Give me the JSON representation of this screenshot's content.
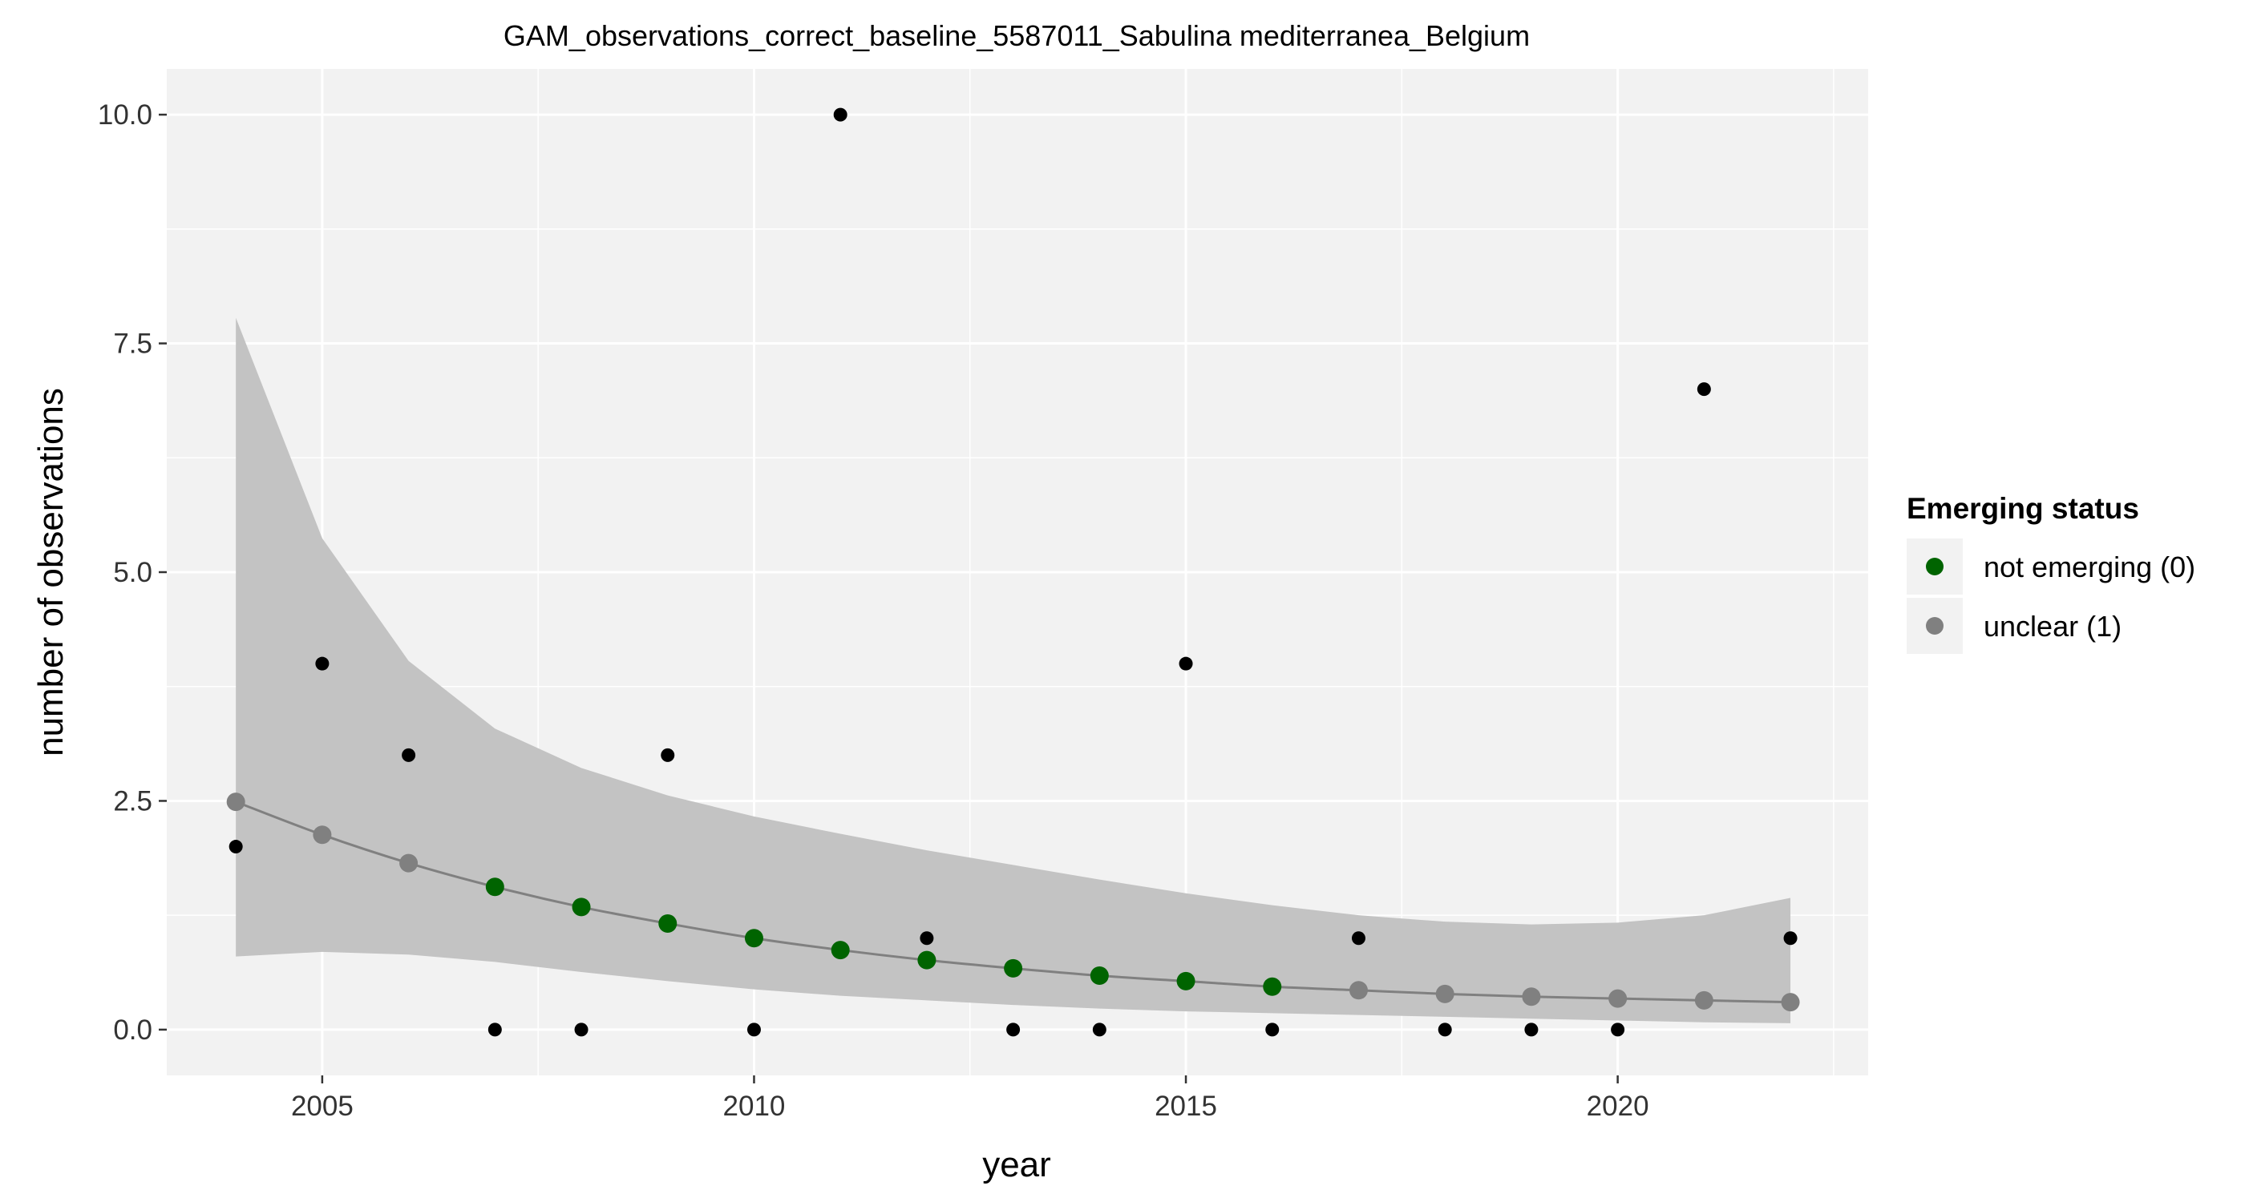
{
  "chart_data": {
    "type": "scatter",
    "title": "GAM_observations_correct_baseline_5587011_Sabulina mediterranea_Belgium",
    "xlabel": "year",
    "ylabel": "number of observations",
    "xlim": [
      2003.2,
      2022.9
    ],
    "ylim": [
      -0.5,
      10.5
    ],
    "x_ticks": [
      2005,
      2010,
      2015,
      2020
    ],
    "x_tick_labels": [
      "2005",
      "2010",
      "2015",
      "2020"
    ],
    "y_ticks": [
      0,
      2.5,
      5,
      7.5,
      10
    ],
    "y_tick_labels": [
      "0.0",
      "2.5",
      "5.0",
      "7.5",
      "10.0"
    ],
    "grid": true,
    "observations": {
      "x": [
        2004,
        2005,
        2006,
        2007,
        2008,
        2009,
        2010,
        2011,
        2012,
        2013,
        2014,
        2015,
        2016,
        2017,
        2018,
        2019,
        2020,
        2021,
        2022
      ],
      "y": [
        2,
        4,
        3,
        0,
        0,
        3,
        0,
        10,
        1,
        0,
        0,
        4,
        0,
        1,
        0,
        0,
        0,
        7,
        1
      ],
      "color": "#000000"
    },
    "fit": {
      "x": [
        2004,
        2005,
        2006,
        2007,
        2008,
        2009,
        2010,
        2011,
        2012,
        2013,
        2014,
        2015,
        2016,
        2017,
        2018,
        2019,
        2020,
        2021,
        2022
      ],
      "y": [
        2.49,
        2.13,
        1.82,
        1.56,
        1.34,
        1.16,
        1.0,
        0.87,
        0.76,
        0.67,
        0.59,
        0.53,
        0.47,
        0.43,
        0.39,
        0.36,
        0.34,
        0.32,
        0.3
      ],
      "lower": [
        0.8,
        0.85,
        0.82,
        0.74,
        0.63,
        0.53,
        0.44,
        0.37,
        0.32,
        0.27,
        0.23,
        0.2,
        0.18,
        0.16,
        0.14,
        0.12,
        0.1,
        0.08,
        0.07
      ],
      "upper": [
        7.78,
        5.37,
        4.03,
        3.29,
        2.86,
        2.56,
        2.33,
        2.14,
        1.96,
        1.8,
        1.64,
        1.49,
        1.36,
        1.25,
        1.18,
        1.15,
        1.17,
        1.25,
        1.44
      ],
      "status": [
        1,
        1,
        1,
        0,
        0,
        0,
        0,
        0,
        0,
        0,
        0,
        0,
        0,
        1,
        1,
        1,
        1,
        1,
        1
      ],
      "line_color": "#808080",
      "band_color": "#c3c3c3"
    },
    "legend": {
      "title": "Emerging status",
      "position": "right",
      "entries": [
        {
          "label": "not emerging (0)",
          "color": "#006400",
          "status": 0
        },
        {
          "label": "unclear (1)",
          "color": "#808080",
          "status": 1
        }
      ]
    },
    "panel_background": "#f2f2f2",
    "grid_color": "#ffffff"
  }
}
